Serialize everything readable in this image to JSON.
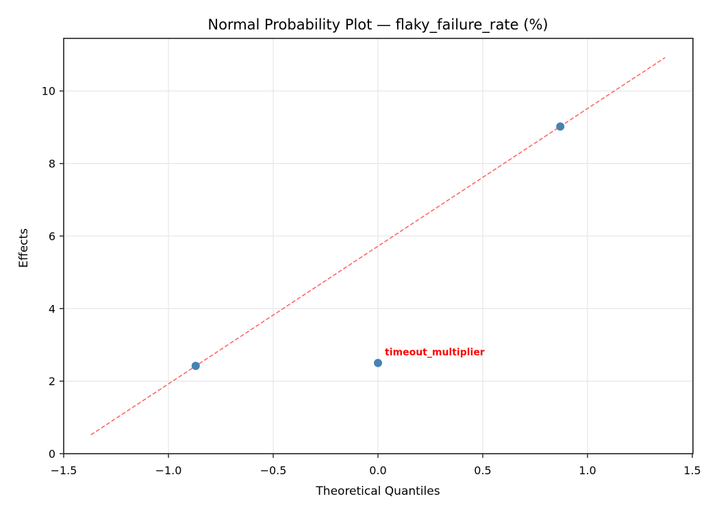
{
  "chart_data": {
    "type": "scatter",
    "title": "Normal Probability Plot — flaky_failure_rate (%)",
    "xlabel": "Theoretical Quantiles",
    "ylabel": "Effects",
    "xlim": [
      -1.5,
      1.5
    ],
    "ylim": [
      0,
      11.45
    ],
    "grid": true,
    "x_ticks": [
      -1.5,
      -1.0,
      -0.5,
      0.0,
      0.5,
      1.0,
      1.5
    ],
    "x_tick_labels": [
      "−1.5",
      "−1.0",
      "−0.5",
      "0.0",
      "0.5",
      "1.0",
      "1.5"
    ],
    "y_ticks": [
      0,
      2,
      4,
      6,
      8,
      10
    ],
    "y_tick_labels": [
      "0",
      "2",
      "4",
      "6",
      "8",
      "10"
    ],
    "series": [
      {
        "name": "effects",
        "color": "#4682b4",
        "points": [
          {
            "x": -0.87,
            "y": 2.42
          },
          {
            "x": 0.0,
            "y": 2.5
          },
          {
            "x": 0.87,
            "y": 9.02
          }
        ]
      },
      {
        "name": "reference-line",
        "style": "dashed",
        "color": "#ff6666",
        "points": [
          {
            "x": -1.37,
            "y": 0.52
          },
          {
            "x": 1.37,
            "y": 10.92
          }
        ]
      }
    ],
    "annotations": [
      {
        "text": "timeout_multiplier",
        "x": 0.0,
        "y": 2.5,
        "color": "#ff0000"
      }
    ]
  }
}
